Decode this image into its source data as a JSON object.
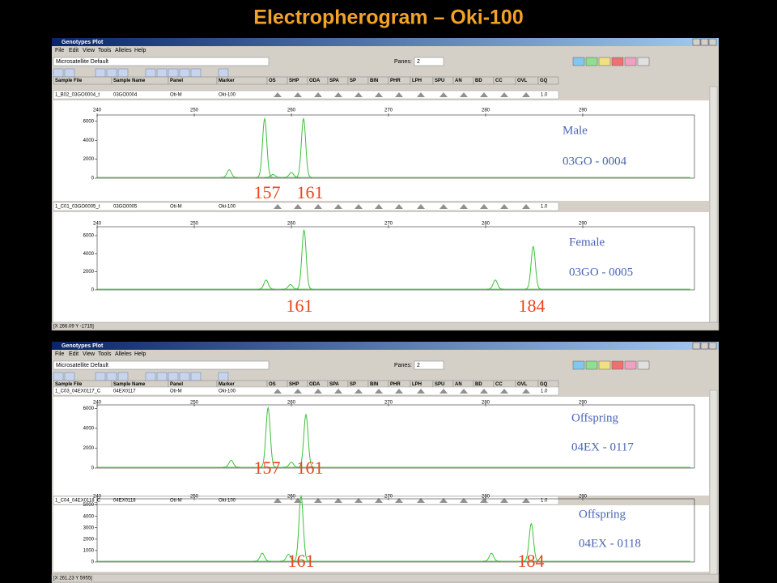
{
  "title": "Electropherogram – Oki-100",
  "windows": [
    {
      "title_bar": "Genotypes Plot",
      "menu": [
        "File",
        "Edit",
        "View",
        "Tools",
        "Alleles",
        "Help"
      ],
      "analysis": "Microsatellite Default",
      "panes_label": "Panes:",
      "panes": "2",
      "columns": [
        "Sample File",
        "Sample Name",
        "Panel",
        "Marker",
        "OS",
        "SHP",
        "ODA",
        "SPA",
        "SP",
        "BIN",
        "PHR",
        "LPH",
        "SPU",
        "AN",
        "BD",
        "CC",
        "OVL",
        "GQ"
      ],
      "status": "[X 266.09 Y -1715]",
      "samples": [
        {
          "file": "1_B02_03GO0004_t",
          "name": "03GO0004",
          "panel": "Oti-M",
          "marker": "Oki-100",
          "gq": "1.0",
          "annotation": [
            "Male",
            "03GO - 0004"
          ],
          "alleles": [
            "157",
            "161"
          ],
          "plot": {
            "xlim": [
              240,
              301.5
            ],
            "xticks": [
              240,
              250,
              260,
              270,
              280,
              290
            ],
            "ylim": [
              0,
              6500
            ],
            "yticks": [
              0,
              2000,
              4000,
              6000
            ],
            "peaks": [
              {
                "x": 253.6,
                "height": 800
              },
              {
                "x": 257.25,
                "height": 6200
              },
              {
                "x": 258.1,
                "height": 300
              },
              {
                "x": 260.0,
                "height": 500
              },
              {
                "x": 261.25,
                "height": 6200
              }
            ]
          }
        },
        {
          "file": "1_C01_03GO0005_t",
          "name": "03GO0005",
          "panel": "Oti-M",
          "marker": "Oki-100",
          "gq": "1.0",
          "annotation": [
            "Female",
            "03GO - 0005"
          ],
          "alleles": [
            "161",
            "184"
          ],
          "plot": {
            "xlim": [
              240,
              301.5
            ],
            "xticks": [
              240,
              250,
              260,
              270,
              280,
              290
            ],
            "ylim": [
              0,
              6800
            ],
            "yticks": [
              0,
              2000,
              4000,
              6000
            ],
            "peaks": [
              {
                "x": 257.4,
                "height": 1000
              },
              {
                "x": 259.9,
                "height": 500
              },
              {
                "x": 261.3,
                "height": 6500
              },
              {
                "x": 281.0,
                "height": 1000
              },
              {
                "x": 284.9,
                "height": 4700
              }
            ]
          }
        }
      ]
    },
    {
      "title_bar": "Genotypes Plot",
      "menu": [
        "File",
        "Edit",
        "View",
        "Tools",
        "Alleles",
        "Help"
      ],
      "analysis": "Microsatellite Default",
      "panes_label": "Panes:",
      "panes": "2",
      "columns": [
        "Sample File",
        "Sample Name",
        "Panel",
        "Marker",
        "OS",
        "SHP",
        "ODA",
        "SPA",
        "SP",
        "BIN",
        "PHR",
        "LPH",
        "SPU",
        "AN",
        "BD",
        "CC",
        "OVL",
        "GQ"
      ],
      "status": "[X 261.23 Y 5955]",
      "samples": [
        {
          "file": "1_C03_04EX0117_C",
          "name": "04EX0117",
          "panel": "Oti-M",
          "marker": "Oki-100",
          "gq": "1.0",
          "annotation": [
            "Offspring",
            "04EX - 0117"
          ],
          "alleles": [
            "157",
            "161"
          ],
          "plot": {
            "xlim": [
              240,
              301.5
            ],
            "xticks": [
              240,
              250,
              260,
              270,
              280,
              290
            ],
            "ylim": [
              0,
              6200
            ],
            "yticks": [
              0,
              2000,
              4000,
              6000
            ],
            "peaks": [
              {
                "x": 253.8,
                "height": 700
              },
              {
                "x": 257.6,
                "height": 6000
              },
              {
                "x": 260.0,
                "height": 500
              },
              {
                "x": 261.5,
                "height": 5300
              }
            ]
          }
        },
        {
          "file": "1_C04_04EX0118_C",
          "name": "04EX0118",
          "panel": "Oti-M",
          "marker": "Oki-100",
          "gq": "1.0",
          "annotation": [
            "Offspring",
            "04EX - 0118"
          ],
          "alleles": [
            "161",
            "184"
          ],
          "plot": {
            "xlim": [
              240,
              301.5
            ],
            "xticks": [
              240,
              250,
              260,
              270,
              280,
              290
            ],
            "ylim": [
              0,
              5400
            ],
            "yticks": [
              0,
              1000,
              2000,
              3000,
              4000,
              5000
            ],
            "peaks": [
              {
                "x": 257.0,
                "height": 700
              },
              {
                "x": 259.7,
                "height": 600
              },
              {
                "x": 261.0,
                "height": 5700
              },
              {
                "x": 280.6,
                "height": 700
              },
              {
                "x": 284.7,
                "height": 3300
              }
            ]
          }
        }
      ]
    }
  ]
}
